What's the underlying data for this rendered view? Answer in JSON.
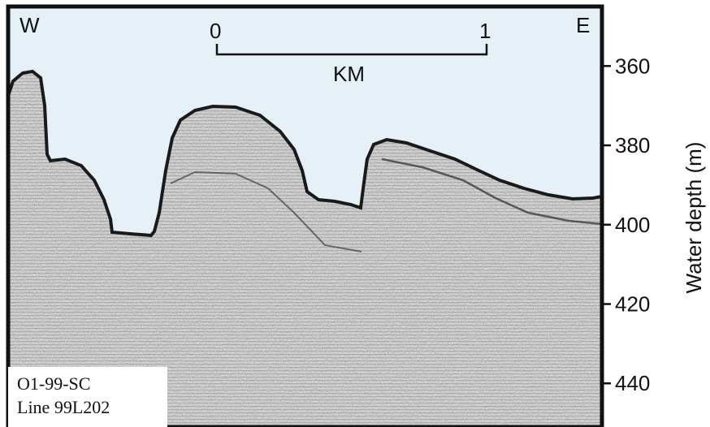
{
  "compass": {
    "west": "W",
    "east": "E"
  },
  "scale_bar": {
    "start_label": "0",
    "end_label": "1",
    "unit_label": "KM",
    "length_km": 1
  },
  "depth_axis": {
    "label": "Water depth (m)",
    "ticks": [
      360,
      380,
      400,
      420,
      440
    ],
    "range_m": [
      345,
      451
    ]
  },
  "caption": {
    "line1": "O1-99-SC",
    "line2": "Line 99L202"
  },
  "colors": {
    "water": "#e5f0f7",
    "frame": "#111111",
    "sediment_light": "#cfcfcf",
    "sediment_dark": "#3a3a3a"
  }
}
